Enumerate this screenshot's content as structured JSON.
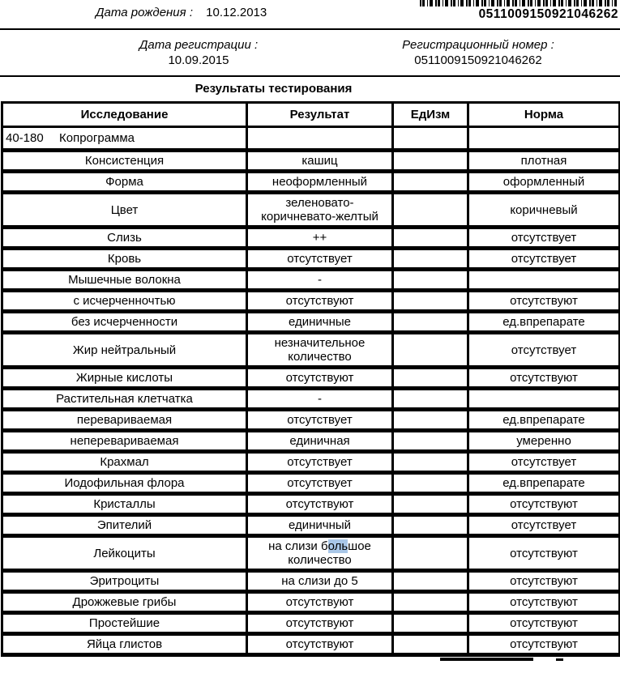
{
  "header": {
    "birth_label": "Дата рождения :",
    "birth_value": "10.12.2013",
    "barcode_number": "0511009150921046262",
    "reg_date_label": "Дата регистрации :",
    "reg_date_value": "10.09.2015",
    "reg_num_label": "Регистрационный номер :",
    "reg_num_value": "0511009150921046262"
  },
  "title": "Результаты тестирования",
  "colors": {
    "text": "#000000",
    "selection_highlight": "#a9c7e8",
    "border": "#000000"
  },
  "table": {
    "columns": [
      "Исследование",
      "Результат",
      "ЕдИзм",
      "Норма"
    ],
    "rows": [
      {
        "code": "40-180",
        "name": "Копрограмма",
        "result": "",
        "unit": "",
        "norm": ""
      },
      {
        "name": "Консистенция",
        "result": "кашиц",
        "unit": "",
        "norm": "плотная"
      },
      {
        "name": "Форма",
        "result": "неоформленный",
        "unit": "",
        "norm": "оформленный"
      },
      {
        "name": "Цвет",
        "result": "зеленовато-коричневато-желтый",
        "unit": "",
        "norm": "коричневый"
      },
      {
        "name": "Слизь",
        "result": "++",
        "unit": "",
        "norm": "отсутствует"
      },
      {
        "name": "Кровь",
        "result": "отсутствует",
        "unit": "",
        "norm": "отсутствует"
      },
      {
        "name": "Мышечные волокна",
        "result": "-",
        "unit": "",
        "norm": ""
      },
      {
        "name": "с исчерченночтью",
        "result": "отсутствуют",
        "unit": "",
        "norm": "отсутствуют"
      },
      {
        "name": "без исчерченности",
        "result": "единичные",
        "unit": "",
        "norm": "ед.впрепарате"
      },
      {
        "name": "Жир нейтральный",
        "result": "незначительное количество",
        "unit": "",
        "norm": "отсутствует"
      },
      {
        "name": "Жирные кислоты",
        "result": "отсутствуют",
        "unit": "",
        "norm": "отсутствуют"
      },
      {
        "name": "Растительная клетчатка",
        "result": "-",
        "unit": "",
        "norm": ""
      },
      {
        "name": "перевариваемая",
        "result": "отсутствует",
        "unit": "",
        "norm": "ед.впрепарате"
      },
      {
        "name": "неперевариваемая",
        "result": "единичная",
        "unit": "",
        "norm": "умеренно"
      },
      {
        "name": "Крахмал",
        "result": "отсутствует",
        "unit": "",
        "norm": "отсутствует"
      },
      {
        "name": "Иодофильная флора",
        "result": "отсутствует",
        "unit": "",
        "norm": "ед.впрепарате"
      },
      {
        "name": "Кристаллы",
        "result": "отсутствуют",
        "unit": "",
        "norm": "отсутствуют"
      },
      {
        "name": "Эпителий",
        "result": "единичный",
        "unit": "",
        "norm": "отсутствует"
      },
      {
        "name": "Лейкоциты",
        "result": "на слизи большое количество",
        "result_hl": {
          "pre": "на слизи б",
          "hl": "оль",
          "post": "шое количество"
        },
        "unit": "",
        "norm": "отсутствуют"
      },
      {
        "name": "Эритроциты",
        "result": "на слизи до 5",
        "unit": "",
        "norm": "отсутствуют"
      },
      {
        "name": "Дрожжевые грибы",
        "result": "отсутствуют",
        "unit": "",
        "norm": "отсутствуют"
      },
      {
        "name": "Простейшие",
        "result": "отсутствуют",
        "unit": "",
        "norm": "отсутствуют"
      },
      {
        "name": "Яйца глистов",
        "result": "отсутствуют",
        "unit": "",
        "norm": "отсутствуют"
      }
    ]
  }
}
